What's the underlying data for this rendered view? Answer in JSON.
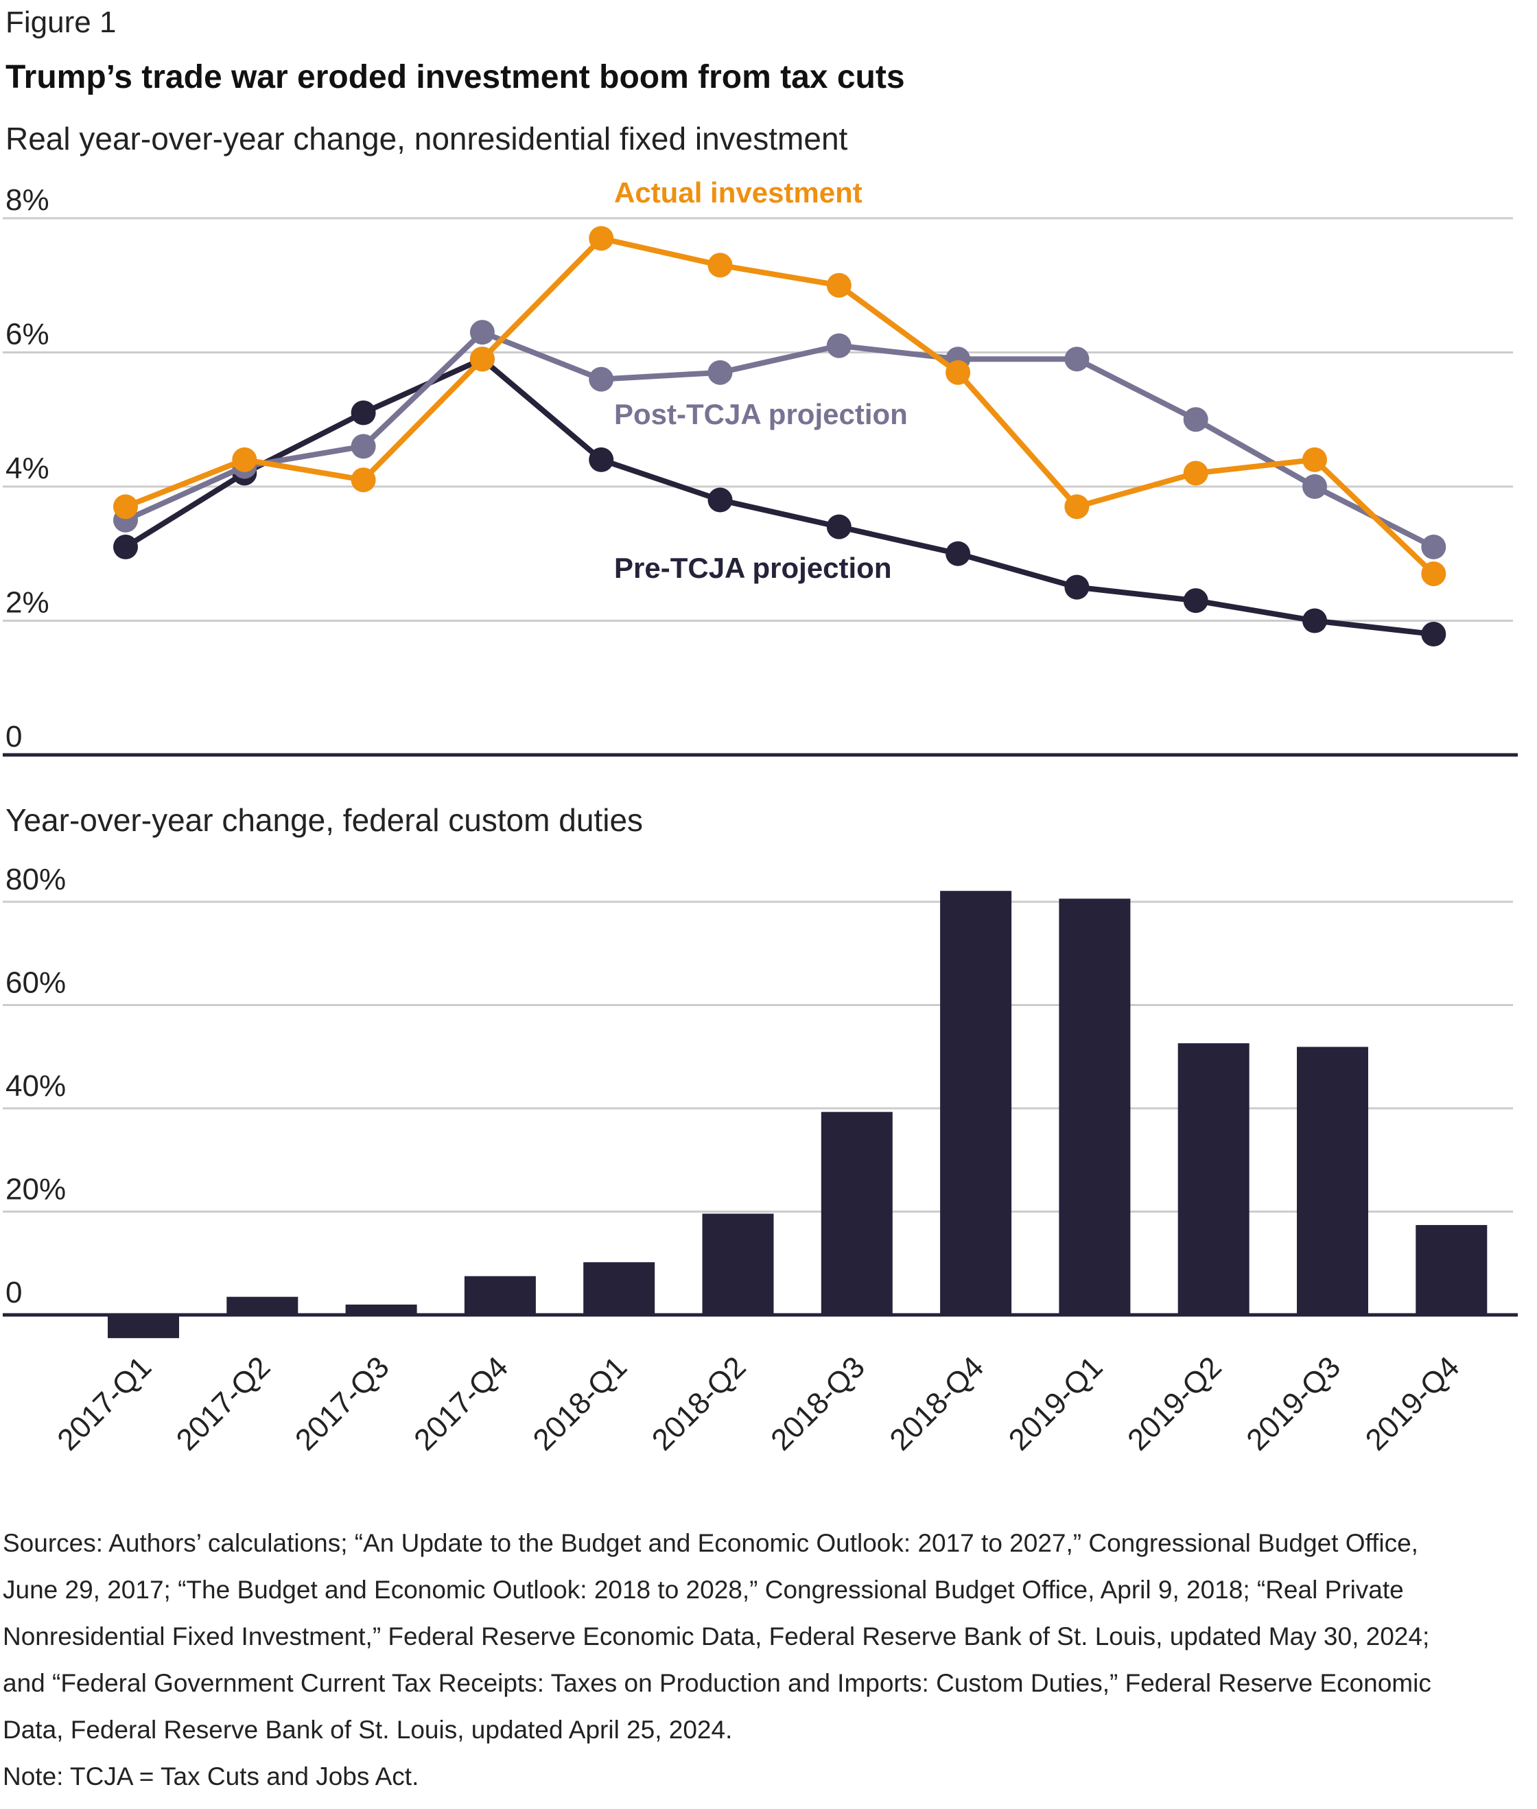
{
  "figure_label": "Figure 1",
  "title": "Trump’s trade war eroded investment boom from tax cuts",
  "colors": {
    "actual": "#ef9010",
    "post_tcja": "#777393",
    "pre_tcja": "#26223a",
    "bars": "#26223a",
    "grid": "#cccccc",
    "axis": "#26223a",
    "text": "#222222"
  },
  "chart_data": [
    {
      "type": "line",
      "subtitle": "Real year-over-year change, nonresidential fixed investment",
      "x": [
        "2017-Q1",
        "2017-Q2",
        "2017-Q3",
        "2017-Q4",
        "2018-Q1",
        "2018-Q2",
        "2018-Q3",
        "2018-Q4",
        "2019-Q1",
        "2019-Q2",
        "2019-Q3",
        "2019-Q4"
      ],
      "ylim": [
        0,
        8
      ],
      "yticks": [
        0,
        2,
        4,
        6,
        8
      ],
      "ytick_labels": [
        "0",
        "2%",
        "4%",
        "6%",
        "8%"
      ],
      "grid": true,
      "series": [
        {
          "name": "Pre-TCJA projection",
          "color_key": "pre_tcja",
          "values": [
            3.1,
            4.2,
            5.1,
            5.9,
            4.4,
            3.8,
            3.4,
            3.0,
            2.5,
            2.3,
            2.0,
            1.8
          ]
        },
        {
          "name": "Post-TCJA projection",
          "color_key": "post_tcja",
          "values": [
            3.5,
            4.3,
            4.6,
            6.3,
            5.6,
            5.7,
            6.1,
            5.9,
            5.9,
            5.0,
            4.0,
            3.1
          ]
        },
        {
          "name": "Actual investment",
          "color_key": "actual",
          "values": [
            3.7,
            4.4,
            4.1,
            5.9,
            7.7,
            7.3,
            7.0,
            5.7,
            3.7,
            4.2,
            4.4,
            2.7
          ]
        }
      ]
    },
    {
      "type": "bar",
      "subtitle": "Year-over-year change, federal custom duties",
      "categories": [
        "2017-Q1",
        "2017-Q2",
        "2017-Q3",
        "2017-Q4",
        "2018-Q1",
        "2018-Q2",
        "2018-Q3",
        "2018-Q4",
        "2019-Q1",
        "2019-Q2",
        "2019-Q3",
        "2019-Q4"
      ],
      "values": [
        -4.5,
        3.5,
        2.0,
        7.5,
        10.2,
        19.6,
        39.3,
        82.1,
        80.6,
        52.6,
        51.9,
        17.4
      ],
      "ylim": [
        0,
        80
      ],
      "yticks": [
        0,
        20,
        40,
        60,
        80
      ],
      "ytick_labels": [
        "0",
        "20%",
        "40%",
        "60%",
        "80%"
      ],
      "grid": true
    }
  ],
  "footer": {
    "lines": [
      "Sources: Authors’ calculations; “An Update to the Budget and Economic Outlook: 2017 to 2027,” Congressional Budget Office,",
      "June 29, 2017; “The Budget and Economic Outlook: 2018 to 2028,” Congressional Budget Office, April 9, 2018; “Real Private",
      "Nonresidential Fixed Investment,” Federal Reserve Economic Data, Federal Reserve Bank of St. Louis, updated May 30, 2024;",
      "and “Federal Government Current Tax Receipts: Taxes on Production and Imports: Custom Duties,” Federal Reserve Economic",
      "Data, Federal Reserve Bank of St. Louis, updated April 25, 2024.",
      "Note: TCJA = Tax Cuts and Jobs Act."
    ]
  }
}
